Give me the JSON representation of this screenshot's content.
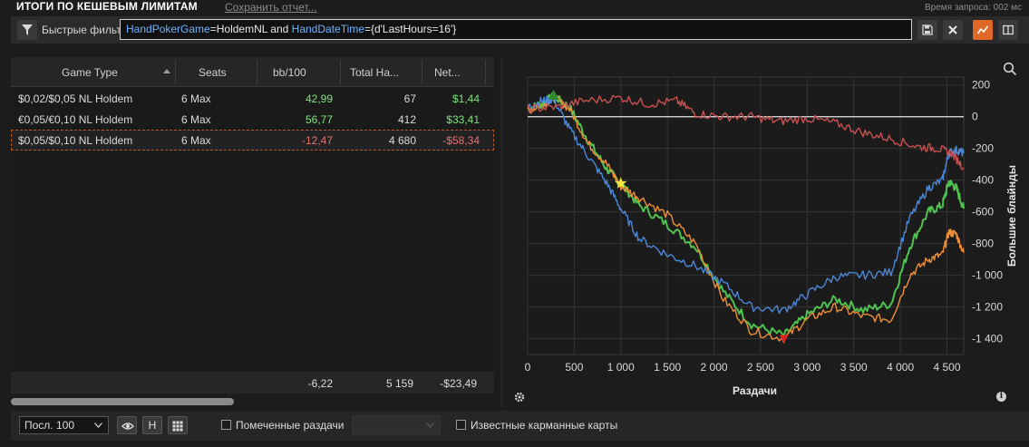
{
  "header": {
    "title": "ИТОГИ ПО КЕШЕВЫМ ЛИМИТАМ",
    "save_report": "Сохранить отчет...",
    "query_time": "Время запроса: 002 мс"
  },
  "filter": {
    "label": "Быстрые фильтры",
    "query_parts": [
      {
        "text": "HandPokerGame",
        "kind": "key"
      },
      {
        "text": "=HoldemNL and ",
        "kind": "val"
      },
      {
        "text": "HandDateTime",
        "kind": "key"
      },
      {
        "text": "={d'LastHours=16'}",
        "kind": "val"
      }
    ]
  },
  "grid": {
    "columns": [
      "Game Type",
      "Seats",
      "bb/100",
      "Total Ha...",
      "Net..."
    ],
    "rows": [
      {
        "game": "$0,02/$0,05 NL Holdem",
        "seats": "6 Max",
        "bb100": "42,99",
        "hands": "67",
        "net": "$1,44",
        "sign": "pos"
      },
      {
        "game": "€0,05/€0,10 NL Holdem",
        "seats": "6 Max",
        "bb100": "56,77",
        "hands": "412",
        "net": "$33,41",
        "sign": "pos"
      },
      {
        "game": "$0,05/$0,10 NL Holdem",
        "seats": "6 Max",
        "bb100": "-12,47",
        "hands": "4 680",
        "net": "-$58,34",
        "sign": "neg"
      }
    ],
    "totals": {
      "bb100": "-6,22",
      "hands": "5 159",
      "net": "-$23,49"
    }
  },
  "chart_data": {
    "type": "line",
    "xlabel": "Раздачи",
    "ylabel": "Большие блайнды",
    "xlim": [
      0,
      4680
    ],
    "ylim": [
      -1500,
      250
    ],
    "x_ticks": [
      0,
      500,
      1000,
      1500,
      2000,
      2500,
      3000,
      3500,
      4000,
      4500
    ],
    "x_tick_labels": [
      "0",
      "500",
      "1 000",
      "1 500",
      "2 000",
      "2 500",
      "3 000",
      "3 500",
      "4 000",
      "4 500"
    ],
    "y_ticks": [
      200,
      0,
      -200,
      -400,
      -600,
      -800,
      -1000,
      -1200,
      -1400
    ],
    "y_tick_labels": [
      "200",
      "0",
      "-200",
      "-400",
      "-600",
      "-800",
      "-1 000",
      "-1 200",
      "-1 400"
    ],
    "grid": true,
    "series": [
      {
        "color": "#4fc34f",
        "x": [
          0,
          150,
          280,
          450,
          650,
          850,
          1000,
          1200,
          1500,
          1800,
          2100,
          2400,
          2750,
          3000,
          3300,
          3600,
          3900,
          4100,
          4300,
          4450,
          4520,
          4600,
          4680
        ],
        "y": [
          50,
          80,
          130,
          60,
          -150,
          -330,
          -420,
          -560,
          -680,
          -820,
          -1100,
          -1310,
          -1380,
          -1250,
          -1150,
          -1220,
          -1180,
          -820,
          -600,
          -560,
          -410,
          -450,
          -580
        ]
      },
      {
        "color": "#ec8f38",
        "x": [
          0,
          150,
          280,
          450,
          650,
          850,
          1000,
          1200,
          1500,
          1800,
          2100,
          2400,
          2750,
          3000,
          3300,
          3600,
          3900,
          4100,
          4300,
          4450,
          4520,
          4600,
          4680
        ],
        "y": [
          40,
          70,
          120,
          50,
          -170,
          -300,
          -440,
          -510,
          -620,
          -800,
          -1150,
          -1350,
          -1400,
          -1280,
          -1200,
          -1260,
          -1280,
          -1000,
          -900,
          -870,
          -730,
          -740,
          -860
        ]
      },
      {
        "color": "#4d87d8",
        "x": [
          0,
          150,
          280,
          450,
          650,
          850,
          1000,
          1200,
          1500,
          1800,
          2100,
          2400,
          2750,
          3000,
          3300,
          3600,
          3900,
          4100,
          4300,
          4450,
          4520,
          4600,
          4680
        ],
        "y": [
          60,
          100,
          110,
          -80,
          -250,
          -420,
          -580,
          -770,
          -870,
          -940,
          -1050,
          -1200,
          -1220,
          -1120,
          -1010,
          -1000,
          -980,
          -640,
          -450,
          -400,
          -230,
          -210,
          -230
        ]
      },
      {
        "color": "#c85050",
        "x": [
          0,
          300,
          600,
          1000,
          1300,
          1600,
          1800,
          2100,
          2400,
          2700,
          3000,
          3300,
          3600,
          3900,
          4200,
          4400,
          4550,
          4680
        ],
        "y": [
          50,
          60,
          100,
          120,
          80,
          100,
          20,
          0,
          0,
          -30,
          -10,
          -40,
          -100,
          -140,
          -190,
          -200,
          -230,
          -320
        ]
      }
    ],
    "markers": [
      {
        "label": "up",
        "x": 280,
        "y": 130,
        "color": "#2e8b2e"
      },
      {
        "label": "star",
        "x": 1000,
        "y": -420,
        "color": "#f5e63d"
      },
      {
        "label": "down",
        "x": 2750,
        "y": -1400,
        "color": "#e02020"
      }
    ]
  },
  "bottom": {
    "range_select": "Посл. 100",
    "h_button": "H",
    "marked_hands": "Помеченные раздачи",
    "known_cards": "Известные карманные карты"
  },
  "icons": {
    "filter": "funnel-icon",
    "save": "floppy-icon",
    "clear": "close-icon",
    "chart": "line-chart-icon",
    "layout": "split-view-icon",
    "zoom": "magnifier-icon",
    "settings": "gear-icon",
    "info": "info-icon",
    "eye": "eye-icon",
    "grid": "grid-icon"
  },
  "colors": {
    "accent": "#e0692a",
    "positive": "#7ee27e",
    "negative": "#e37272",
    "link": "#6fb2ff"
  }
}
